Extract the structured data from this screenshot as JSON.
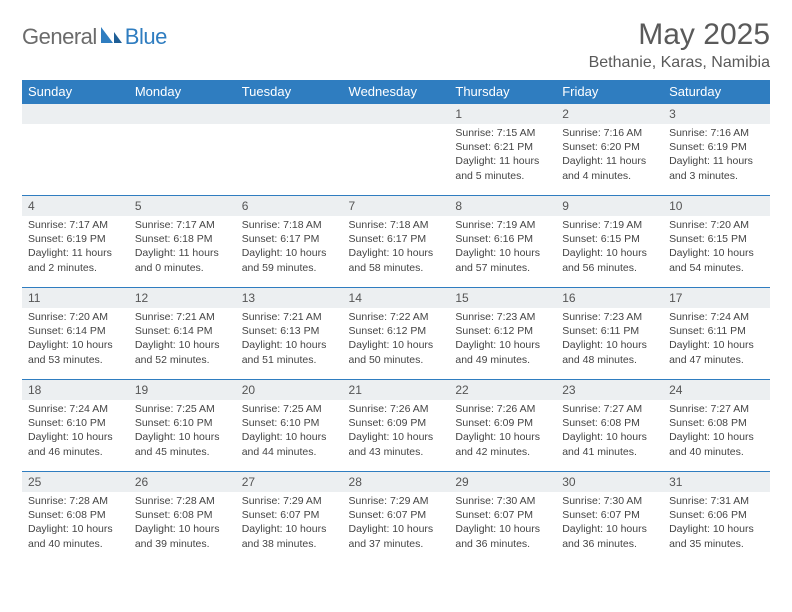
{
  "brand": {
    "general": "General",
    "blue": "Blue"
  },
  "title": "May 2025",
  "location": "Bethanie, Karas, Namibia",
  "colors": {
    "accent": "#2f7dc0",
    "dayband": "#eceff1",
    "text": "#444"
  },
  "weekdays": [
    "Sunday",
    "Monday",
    "Tuesday",
    "Wednesday",
    "Thursday",
    "Friday",
    "Saturday"
  ],
  "rows": [
    [
      null,
      null,
      null,
      null,
      {
        "n": "1",
        "sr": "7:15 AM",
        "ss": "6:21 PM",
        "dl": "11 hours and 5 minutes."
      },
      {
        "n": "2",
        "sr": "7:16 AM",
        "ss": "6:20 PM",
        "dl": "11 hours and 4 minutes."
      },
      {
        "n": "3",
        "sr": "7:16 AM",
        "ss": "6:19 PM",
        "dl": "11 hours and 3 minutes."
      }
    ],
    [
      {
        "n": "4",
        "sr": "7:17 AM",
        "ss": "6:19 PM",
        "dl": "11 hours and 2 minutes."
      },
      {
        "n": "5",
        "sr": "7:17 AM",
        "ss": "6:18 PM",
        "dl": "11 hours and 0 minutes."
      },
      {
        "n": "6",
        "sr": "7:18 AM",
        "ss": "6:17 PM",
        "dl": "10 hours and 59 minutes."
      },
      {
        "n": "7",
        "sr": "7:18 AM",
        "ss": "6:17 PM",
        "dl": "10 hours and 58 minutes."
      },
      {
        "n": "8",
        "sr": "7:19 AM",
        "ss": "6:16 PM",
        "dl": "10 hours and 57 minutes."
      },
      {
        "n": "9",
        "sr": "7:19 AM",
        "ss": "6:15 PM",
        "dl": "10 hours and 56 minutes."
      },
      {
        "n": "10",
        "sr": "7:20 AM",
        "ss": "6:15 PM",
        "dl": "10 hours and 54 minutes."
      }
    ],
    [
      {
        "n": "11",
        "sr": "7:20 AM",
        "ss": "6:14 PM",
        "dl": "10 hours and 53 minutes."
      },
      {
        "n": "12",
        "sr": "7:21 AM",
        "ss": "6:14 PM",
        "dl": "10 hours and 52 minutes."
      },
      {
        "n": "13",
        "sr": "7:21 AM",
        "ss": "6:13 PM",
        "dl": "10 hours and 51 minutes."
      },
      {
        "n": "14",
        "sr": "7:22 AM",
        "ss": "6:12 PM",
        "dl": "10 hours and 50 minutes."
      },
      {
        "n": "15",
        "sr": "7:23 AM",
        "ss": "6:12 PM",
        "dl": "10 hours and 49 minutes."
      },
      {
        "n": "16",
        "sr": "7:23 AM",
        "ss": "6:11 PM",
        "dl": "10 hours and 48 minutes."
      },
      {
        "n": "17",
        "sr": "7:24 AM",
        "ss": "6:11 PM",
        "dl": "10 hours and 47 minutes."
      }
    ],
    [
      {
        "n": "18",
        "sr": "7:24 AM",
        "ss": "6:10 PM",
        "dl": "10 hours and 46 minutes."
      },
      {
        "n": "19",
        "sr": "7:25 AM",
        "ss": "6:10 PM",
        "dl": "10 hours and 45 minutes."
      },
      {
        "n": "20",
        "sr": "7:25 AM",
        "ss": "6:10 PM",
        "dl": "10 hours and 44 minutes."
      },
      {
        "n": "21",
        "sr": "7:26 AM",
        "ss": "6:09 PM",
        "dl": "10 hours and 43 minutes."
      },
      {
        "n": "22",
        "sr": "7:26 AM",
        "ss": "6:09 PM",
        "dl": "10 hours and 42 minutes."
      },
      {
        "n": "23",
        "sr": "7:27 AM",
        "ss": "6:08 PM",
        "dl": "10 hours and 41 minutes."
      },
      {
        "n": "24",
        "sr": "7:27 AM",
        "ss": "6:08 PM",
        "dl": "10 hours and 40 minutes."
      }
    ],
    [
      {
        "n": "25",
        "sr": "7:28 AM",
        "ss": "6:08 PM",
        "dl": "10 hours and 40 minutes."
      },
      {
        "n": "26",
        "sr": "7:28 AM",
        "ss": "6:08 PM",
        "dl": "10 hours and 39 minutes."
      },
      {
        "n": "27",
        "sr": "7:29 AM",
        "ss": "6:07 PM",
        "dl": "10 hours and 38 minutes."
      },
      {
        "n": "28",
        "sr": "7:29 AM",
        "ss": "6:07 PM",
        "dl": "10 hours and 37 minutes."
      },
      {
        "n": "29",
        "sr": "7:30 AM",
        "ss": "6:07 PM",
        "dl": "10 hours and 36 minutes."
      },
      {
        "n": "30",
        "sr": "7:30 AM",
        "ss": "6:07 PM",
        "dl": "10 hours and 36 minutes."
      },
      {
        "n": "31",
        "sr": "7:31 AM",
        "ss": "6:06 PM",
        "dl": "10 hours and 35 minutes."
      }
    ]
  ],
  "labels": {
    "sunrise": "Sunrise: ",
    "sunset": "Sunset: ",
    "daylight": "Daylight: "
  }
}
